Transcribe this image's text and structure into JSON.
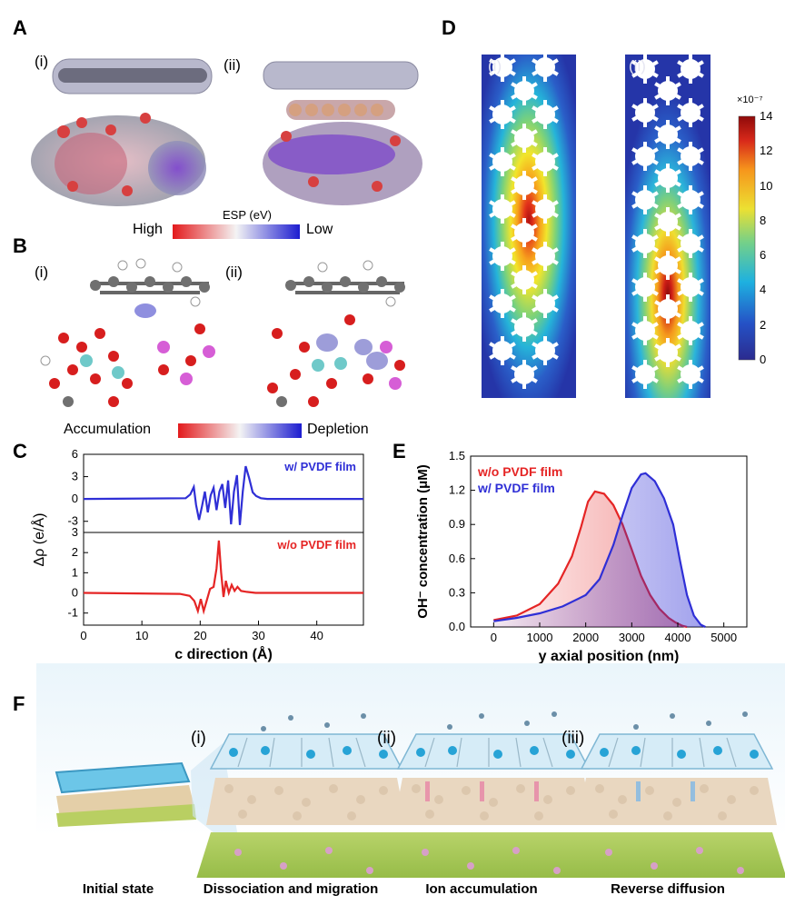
{
  "panels": {
    "A": {
      "label": "A",
      "sub_i": "(i)",
      "sub_ii": "(ii)",
      "scale_title": "ESP (eV)",
      "scale_left": "High",
      "scale_right": "Low"
    },
    "B": {
      "label": "B",
      "sub_i": "(i)",
      "sub_ii": "(ii)",
      "scale_left": "Accumulation",
      "scale_right": "Depletion"
    },
    "C": {
      "label": "C"
    },
    "D": {
      "label": "D",
      "sub_i": "(i)",
      "sub_ii": "(ii)",
      "colorbar_exponent": "×10⁻⁷",
      "colorbar_ticks": [
        "14",
        "12",
        "10",
        "8",
        "6",
        "4",
        "2",
        "0"
      ]
    },
    "E": {
      "label": "E"
    },
    "F": {
      "label": "F",
      "sub_i": "(i)",
      "sub_ii": "(ii)",
      "sub_iii": "(iii)",
      "captions": [
        "Initial state",
        "Dissociation and migration",
        "Ion accumulation",
        "Reverse diffusion"
      ]
    }
  },
  "chart_data": [
    {
      "id": "C",
      "type": "line",
      "xlabel": "c direction (Å)",
      "ylabel": "Δρ (e/Å)",
      "xlim": [
        0,
        48
      ],
      "xticks": [
        "0",
        "10",
        "20",
        "30",
        "40"
      ],
      "subplots": [
        {
          "legend": "w/ PVDF film",
          "color": "#2f2fd6",
          "ylim": [
            -4.5,
            6
          ],
          "yticks": [
            "6",
            "3",
            "0",
            "-3"
          ],
          "x": [
            0,
            17.5,
            18.3,
            18.9,
            19.3,
            19.8,
            20.3,
            20.8,
            21.3,
            21.8,
            22.3,
            22.8,
            23.3,
            23.8,
            24.3,
            24.8,
            25.3,
            25.8,
            26.3,
            26.8,
            27.3,
            27.8,
            28.4,
            29.0,
            29.6,
            30.4,
            31.5,
            48
          ],
          "y": [
            0,
            0.1,
            0.6,
            1.6,
            -0.8,
            -2.8,
            -1.0,
            1.0,
            -1.8,
            0.5,
            1.5,
            -1.5,
            1.0,
            2.0,
            -1.2,
            2.5,
            -3.4,
            1.0,
            3.2,
            -3.5,
            1.0,
            4.4,
            2.8,
            0.9,
            0.4,
            0.1,
            0.0,
            0
          ]
        },
        {
          "legend": "w/o PVDF film",
          "color": "#e52525",
          "ylim": [
            -1.6,
            3
          ],
          "yticks": [
            "3",
            "2",
            "1",
            "0",
            "-1"
          ],
          "x": [
            0,
            16.5,
            18.2,
            19.0,
            19.6,
            20.1,
            20.6,
            21.1,
            21.7,
            22.3,
            22.8,
            23.2,
            23.6,
            24.0,
            24.4,
            24.9,
            25.4,
            25.9,
            26.4,
            27.0,
            28.0,
            29.5,
            48
          ],
          "y": [
            0,
            -0.05,
            -0.15,
            -0.4,
            -0.9,
            -0.3,
            -0.9,
            -0.4,
            0.2,
            0.3,
            1.2,
            2.6,
            1.0,
            -0.2,
            0.6,
            0.0,
            0.4,
            0.1,
            0.3,
            0.1,
            0.05,
            0.0,
            0
          ]
        }
      ]
    },
    {
      "id": "E",
      "type": "area",
      "xlabel": "y axial position (nm)",
      "ylabel": "OH⁻ concentration (μM)",
      "xlim": [
        -500,
        5500
      ],
      "ylim": [
        0,
        1.5
      ],
      "xticks": [
        "0",
        "1000",
        "2000",
        "3000",
        "4000",
        "5000"
      ],
      "yticks": [
        "0.0",
        "0.3",
        "0.6",
        "0.9",
        "1.2",
        "1.5"
      ],
      "series": [
        {
          "name": "w/o PVDF film",
          "color": "#e52525",
          "x": [
            0,
            500,
            1000,
            1400,
            1700,
            1900,
            2050,
            2200,
            2400,
            2600,
            2800,
            3000,
            3200,
            3400,
            3600,
            3800,
            3950,
            4100,
            4200
          ],
          "y": [
            0.06,
            0.1,
            0.2,
            0.38,
            0.62,
            0.88,
            1.1,
            1.19,
            1.17,
            1.07,
            0.9,
            0.68,
            0.45,
            0.28,
            0.16,
            0.08,
            0.04,
            0.01,
            0.0
          ]
        },
        {
          "name": "w/  PVDF film",
          "color": "#2f2fd6",
          "x": [
            0,
            500,
            1000,
            1500,
            2000,
            2300,
            2600,
            2800,
            3000,
            3200,
            3300,
            3500,
            3700,
            3900,
            4050,
            4200,
            4350,
            4500,
            4600
          ],
          "y": [
            0.05,
            0.08,
            0.12,
            0.18,
            0.28,
            0.42,
            0.72,
            0.98,
            1.22,
            1.34,
            1.35,
            1.28,
            1.13,
            0.9,
            0.58,
            0.28,
            0.1,
            0.02,
            0.0
          ]
        }
      ]
    }
  ]
}
